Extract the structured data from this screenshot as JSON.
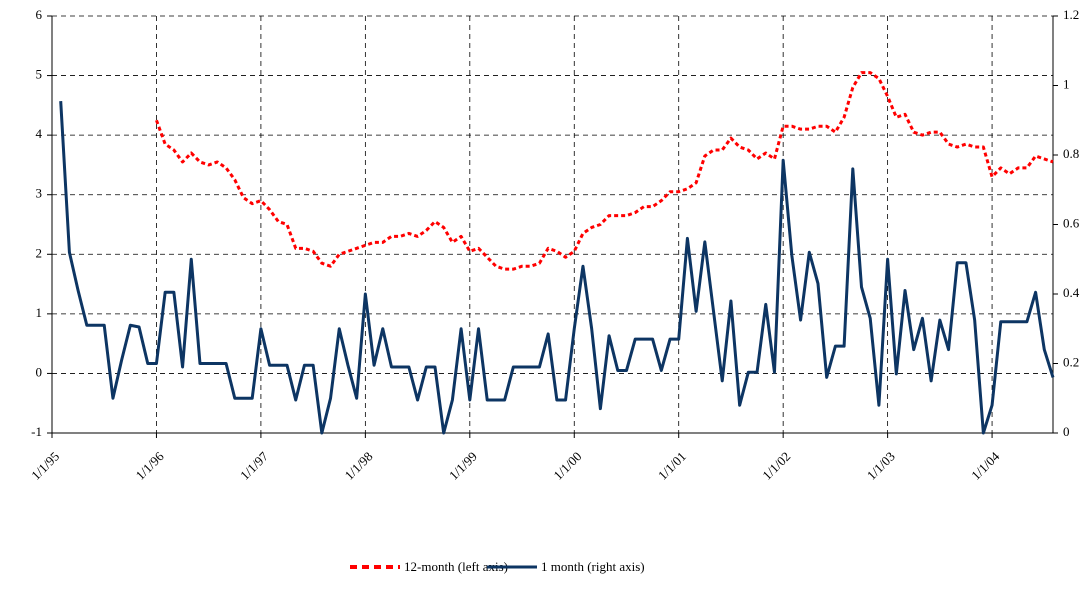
{
  "chart_data": {
    "type": "line",
    "x": [
      1,
      2,
      3,
      4,
      5,
      6,
      7,
      8,
      9,
      10,
      11,
      12,
      13,
      14,
      15,
      16,
      17,
      18,
      19,
      20,
      21,
      22,
      23,
      24,
      25,
      26,
      27,
      28,
      29,
      30,
      31,
      32,
      33,
      34,
      35,
      36,
      37,
      38,
      39,
      40,
      41,
      42,
      43,
      44,
      45,
      46,
      47,
      48,
      49,
      50,
      51,
      52,
      53,
      54,
      55,
      56,
      57,
      58,
      59,
      60,
      61,
      62,
      63,
      64,
      65,
      66,
      67,
      68,
      69,
      70,
      71,
      72,
      73,
      74,
      75,
      76,
      77,
      78,
      79,
      80,
      81,
      82,
      83,
      84,
      85,
      86,
      87,
      88,
      89,
      90,
      91,
      92,
      93,
      94,
      95,
      96,
      97,
      98,
      99,
      100,
      101,
      102,
      103,
      104,
      105,
      106,
      107,
      108,
      109,
      110,
      111,
      112,
      113,
      114,
      115
    ],
    "xlim": [
      0,
      115
    ],
    "xticks": [
      {
        "value": 0,
        "label": "1/1/95"
      },
      {
        "value": 12,
        "label": "1/1/96"
      },
      {
        "value": 24,
        "label": "1/1/97"
      },
      {
        "value": 36,
        "label": "1/1/98"
      },
      {
        "value": 48,
        "label": "1/1/99"
      },
      {
        "value": 60,
        "label": "1/1/00"
      },
      {
        "value": 72,
        "label": "1/1/01"
      },
      {
        "value": 84,
        "label": "1/1/02"
      },
      {
        "value": 96,
        "label": "1/1/03"
      },
      {
        "value": 108,
        "label": "1/1/04"
      }
    ],
    "ylim": [
      -1,
      6
    ],
    "yticks": [
      -1,
      0,
      1,
      2,
      3,
      4,
      5,
      6
    ],
    "y2lim": [
      0,
      1.2
    ],
    "y2ticks": [
      0,
      0.2,
      0.4,
      0.6,
      0.8,
      1,
      1.2
    ],
    "grid": true,
    "series": [
      {
        "name": "12-month (left axis)",
        "color": "#ff0000",
        "dashed": true,
        "values": [
          null,
          null,
          null,
          null,
          null,
          null,
          null,
          null,
          null,
          null,
          null,
          4.25,
          3.85,
          3.75,
          3.55,
          3.7,
          3.55,
          3.5,
          3.55,
          3.45,
          3.25,
          2.95,
          2.85,
          2.9,
          2.75,
          2.55,
          2.5,
          2.1,
          2.1,
          2.05,
          1.85,
          1.8,
          2.0,
          2.05,
          2.1,
          2.15,
          2.2,
          2.2,
          2.3,
          2.3,
          2.35,
          2.3,
          2.4,
          2.55,
          2.45,
          2.2,
          2.3,
          2.05,
          2.1,
          1.95,
          1.8,
          1.75,
          1.75,
          1.8,
          1.8,
          1.85,
          2.1,
          2.05,
          1.95,
          2.05,
          2.35,
          2.45,
          2.5,
          2.65,
          2.65,
          2.65,
          2.7,
          2.8,
          2.8,
          2.9,
          3.05,
          3.05,
          3.1,
          3.2,
          3.65,
          3.75,
          3.75,
          3.95,
          3.8,
          3.75,
          3.6,
          3.7,
          3.6,
          4.15,
          4.15,
          4.1,
          4.1,
          4.15,
          4.15,
          4.05,
          4.3,
          4.8,
          5.05,
          5.05,
          4.95,
          4.65,
          4.3,
          4.35,
          4.05,
          4.0,
          4.05,
          4.05,
          3.85,
          3.8,
          3.85,
          3.8,
          3.8,
          3.3,
          3.45,
          3.35,
          3.45,
          3.45,
          3.65,
          3.6,
          3.55
        ]
      },
      {
        "name": "1 month  (right axis)",
        "color": "#0d3563",
        "axis": "y2",
        "values": [
          0.955,
          0.52,
          0.41,
          0.31,
          0.31,
          0.31,
          0.1,
          0.21,
          0.31,
          0.305,
          0.2,
          0.2,
          0.405,
          0.405,
          0.19,
          0.5,
          0.2,
          0.2,
          0.2,
          0.2,
          0.1,
          0.1,
          0.1,
          0.3,
          0.195,
          0.195,
          0.195,
          0.095,
          0.195,
          0.195,
          0,
          0.1,
          0.3,
          0.195,
          0.1,
          0.4,
          0.195,
          0.3,
          0.19,
          0.19,
          0.19,
          0.095,
          0.19,
          0.19,
          0,
          0.095,
          0.3,
          0.095,
          0.3,
          0.095,
          0.095,
          0.095,
          0.19,
          0.19,
          0.19,
          0.19,
          0.285,
          0.095,
          0.095,
          0.3,
          0.48,
          0.3,
          0.07,
          0.28,
          0.18,
          0.18,
          0.27,
          0.27,
          0.27,
          0.18,
          0.27,
          0.27,
          0.56,
          0.35,
          0.55,
          0.35,
          0.15,
          0.38,
          0.08,
          0.175,
          0.175,
          0.37,
          0.175,
          0.785,
          0.51,
          0.325,
          0.52,
          0.43,
          0.16,
          0.25,
          0.25,
          0.76,
          0.42,
          0.33,
          0.08,
          0.5,
          0.17,
          0.41,
          0.24,
          0.33,
          0.15,
          0.325,
          0.24,
          0.49,
          0.49,
          0.325,
          0,
          0.08,
          0.32,
          0.32,
          0.32,
          0.32,
          0.405,
          0.24,
          0.16
        ]
      }
    ]
  }
}
